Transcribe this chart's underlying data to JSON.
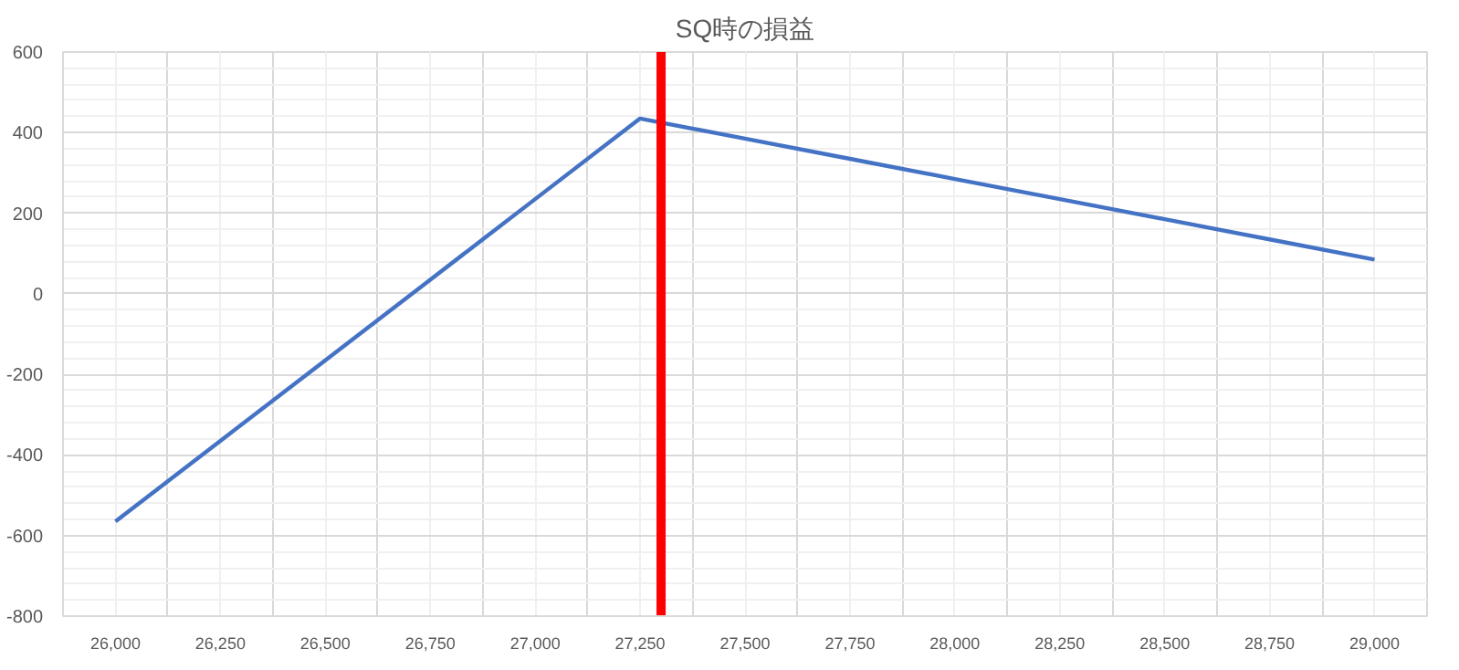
{
  "chart_data": {
    "type": "line",
    "title": "SQ時の損益",
    "x": [
      26000,
      26250,
      26500,
      26750,
      27000,
      27250,
      27500,
      27750,
      28000,
      28250,
      28500,
      28750,
      29000
    ],
    "series": [
      {
        "color": "#4472c4",
        "values": [
          -565,
          -365,
          -165,
          35,
          235,
          435,
          385,
          335,
          285,
          235,
          185,
          135,
          85
        ]
      }
    ],
    "xlim": [
      25875,
      29125
    ],
    "xticks": [
      {
        "value": 26000,
        "label": "26,000"
      },
      {
        "value": 26250,
        "label": "26,250"
      },
      {
        "value": 26500,
        "label": "26,500"
      },
      {
        "value": 26750,
        "label": "26,750"
      },
      {
        "value": 27000,
        "label": "27,000"
      },
      {
        "value": 27250,
        "label": "27,250"
      },
      {
        "value": 27500,
        "label": "27,500"
      },
      {
        "value": 27750,
        "label": "27,750"
      },
      {
        "value": 28000,
        "label": "28,000"
      },
      {
        "value": 28250,
        "label": "28,250"
      },
      {
        "value": 28500,
        "label": "28,500"
      },
      {
        "value": 28750,
        "label": "28,750"
      },
      {
        "value": 29000,
        "label": "29,000"
      }
    ],
    "ylim": [
      -800,
      600
    ],
    "yticks": [
      -800,
      -600,
      -400,
      -200,
      0,
      200,
      400,
      600
    ],
    "ref_lines": [
      {
        "axis": "x",
        "value": 27300,
        "color": "#ff0000"
      }
    ],
    "grid": true,
    "marker": "none",
    "line_style": "solid"
  }
}
